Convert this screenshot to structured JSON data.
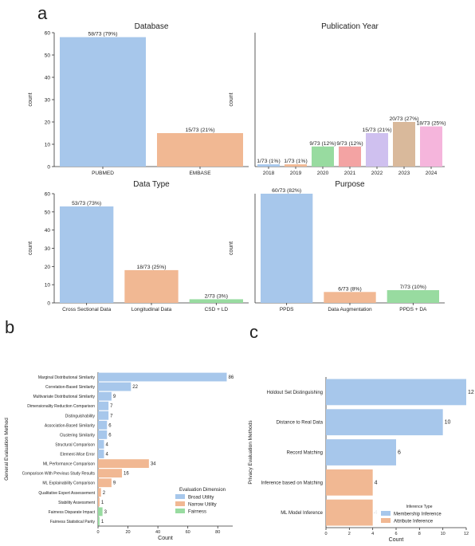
{
  "panel_letters": [
    "a",
    "b",
    "c"
  ],
  "colors": {
    "blue": "#a7c7eb",
    "orange": "#f1b893",
    "green": "#98dba0",
    "red": "#f3a3a3",
    "purple": "#cfc0ef",
    "tan": "#d9b99b",
    "pink": "#f5b5dc",
    "axis": "#333333"
  },
  "chart_data": [
    {
      "id": "database",
      "type": "bar",
      "title": "Database",
      "ylabel": "count",
      "categories": [
        "PUBMED",
        "EMBASE"
      ],
      "values": [
        58,
        15
      ],
      "labels": [
        "58/73 (79%)",
        "15/73 (21%)"
      ],
      "colors": [
        "blue",
        "orange"
      ],
      "ylim": [
        0,
        60
      ],
      "yticks": [
        0,
        10,
        20,
        30,
        40,
        50,
        60
      ]
    },
    {
      "id": "year",
      "type": "bar",
      "title": "Publication Year",
      "ylabel": "count",
      "categories": [
        "2018",
        "2019",
        "2020",
        "2021",
        "2022",
        "2023",
        "2024"
      ],
      "values": [
        1,
        1,
        9,
        9,
        15,
        20,
        18
      ],
      "labels": [
        "1/73 (1%)",
        "1/73 (1%)",
        "9/73 (12%)",
        "9/73 (12%)",
        "15/73 (21%)",
        "20/73 (27%)",
        "18/73 (25%)"
      ],
      "colors": [
        "blue",
        "orange",
        "green",
        "red",
        "purple",
        "tan",
        "pink"
      ],
      "ylim": [
        0,
        60
      ],
      "yticks": []
    },
    {
      "id": "datatype",
      "type": "bar",
      "title": "Data Type",
      "ylabel": "count",
      "categories": [
        "Cross Sectional Data",
        "Longitudinal Data",
        "CSD + LD"
      ],
      "values": [
        53,
        18,
        2
      ],
      "labels": [
        "53/73 (73%)",
        "18/73 (25%)",
        "2/73 (3%)"
      ],
      "colors": [
        "blue",
        "orange",
        "green"
      ],
      "ylim": [
        0,
        60
      ],
      "yticks": [
        0,
        10,
        20,
        30,
        40,
        50,
        60
      ]
    },
    {
      "id": "purpose",
      "type": "bar",
      "title": "Purpose",
      "ylabel": "count",
      "categories": [
        "PPDS",
        "Data Augmentation",
        "PPDS + DA"
      ],
      "values": [
        60,
        6,
        7
      ],
      "labels": [
        "60/73 (82%)",
        "6/73 (8%)",
        "7/73 (10%)"
      ],
      "colors": [
        "blue",
        "orange",
        "green"
      ],
      "ylim": [
        0,
        60
      ],
      "yticks": []
    },
    {
      "id": "general",
      "type": "barh",
      "xlabel": "Count",
      "ylabel": "General Evaluation Method",
      "categories": [
        "Marginal Distributional Similarity",
        "Correlation-Based Similarity",
        "Multivariate Distributional Similarity",
        "Dimensionality Reduction Comparison",
        "Distinguishability",
        "Association-Based Similarity",
        "Clustering Similarity",
        "Structural Comparison",
        "Element-Wise Error",
        "ML Performance Comparison",
        "Comparison With Previous Study Results",
        "ML Explainability Comparison",
        "Qualitative Expert Assessement",
        "Stability Assessment",
        "Fairness Disparate Impact",
        "Fairness Statistical Parity"
      ],
      "values": [
        86,
        22,
        9,
        7,
        7,
        6,
        6,
        4,
        4,
        34,
        16,
        9,
        2,
        1,
        3,
        1
      ],
      "labels": [
        "86",
        "22",
        "9",
        "7",
        "7",
        "6",
        "6",
        "4",
        "4",
        "34",
        "16",
        "9",
        "2",
        "1",
        "3",
        "1"
      ],
      "colors": [
        "blue",
        "blue",
        "blue",
        "blue",
        "blue",
        "blue",
        "blue",
        "blue",
        "blue",
        "orange",
        "orange",
        "orange",
        "orange",
        "orange",
        "green",
        "green"
      ],
      "xlim": [
        0,
        90
      ],
      "xticks": [
        0,
        20,
        40,
        60,
        80
      ],
      "legend": {
        "title": "Evaluation Dimension",
        "position": "bottom-right",
        "entries": [
          {
            "label": "Broad Utility",
            "color": "blue"
          },
          {
            "label": "Narrow Utility",
            "color": "orange"
          },
          {
            "label": "Fairness",
            "color": "green"
          }
        ]
      }
    },
    {
      "id": "privacy",
      "type": "barh",
      "xlabel": "Count",
      "ylabel": "Privacy Evaluation Methods",
      "categories": [
        "Holdout Set Distinguishing",
        "Distance to Real Data",
        "Record Matching",
        "Inference based on Matching",
        "ML Model Inference"
      ],
      "values": [
        12,
        10,
        6,
        4,
        4
      ],
      "labels": [
        "12",
        "10",
        "6",
        "4",
        "4"
      ],
      "colors": [
        "blue",
        "blue",
        "blue",
        "orange",
        "orange"
      ],
      "xlim": [
        0,
        12
      ],
      "xticks": [
        0,
        2,
        4,
        6,
        8,
        10,
        12
      ],
      "legend": {
        "title": "Inference Type",
        "position": "bottom-right",
        "entries": [
          {
            "label": "Membership Inference",
            "color": "blue"
          },
          {
            "label": "Attribute Inference",
            "color": "orange"
          }
        ]
      }
    }
  ]
}
